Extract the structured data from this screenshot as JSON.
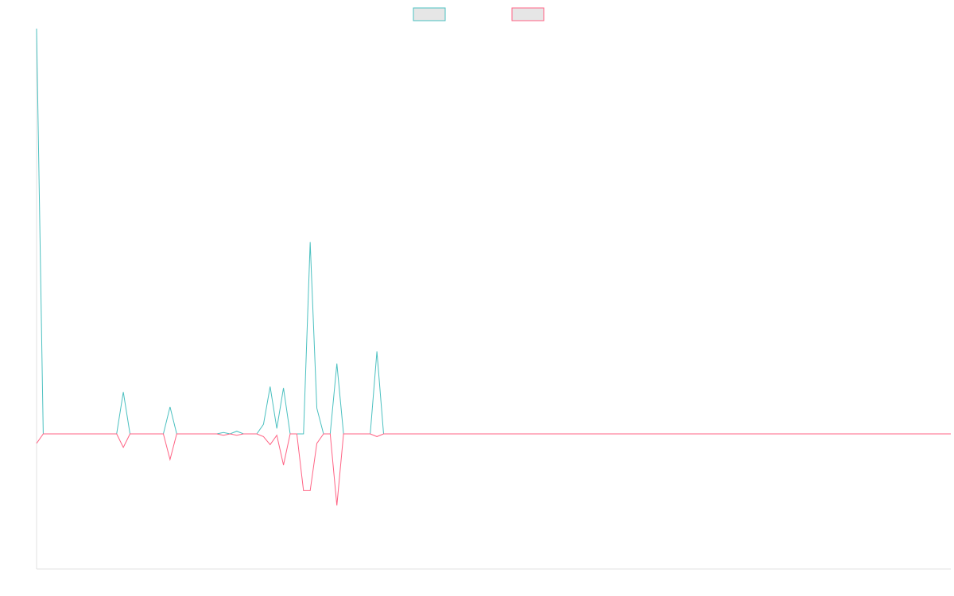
{
  "chart_data": {
    "type": "line",
    "title": "",
    "xlabel": "",
    "ylabel": "",
    "grid": false,
    "legend_placement": "top-center",
    "ylim": [
      -100,
      300
    ],
    "series": [
      {
        "color": "#4bc0c0",
        "fill": "#e6e6e6",
        "values": [
          300,
          0,
          0,
          0,
          0,
          0,
          0,
          0,
          0,
          0,
          0,
          0,
          0,
          31,
          0,
          0,
          0,
          0,
          0,
          0,
          20,
          0,
          0,
          0,
          0,
          0,
          0,
          0,
          1,
          0,
          2,
          0,
          0,
          0,
          7,
          35,
          4,
          34,
          0,
          0,
          0,
          142,
          19,
          0,
          0,
          52,
          0,
          0,
          0,
          0,
          0,
          61,
          0,
          0,
          0,
          0,
          0,
          0,
          0,
          0,
          0,
          0,
          0,
          0,
          0,
          0,
          0,
          0,
          0,
          0,
          0,
          0,
          0,
          0,
          0,
          0,
          0,
          0,
          0,
          0,
          0,
          0,
          0,
          0,
          0,
          0,
          0,
          0,
          0,
          0,
          0,
          0,
          0,
          0,
          0,
          0,
          0,
          0,
          0,
          0,
          0,
          0,
          0,
          0,
          0,
          0,
          0,
          0,
          0,
          0,
          0,
          0,
          0,
          0,
          0,
          0,
          0,
          0,
          0,
          0,
          0,
          0,
          0,
          0,
          0,
          0,
          0,
          0,
          0,
          0,
          0,
          0,
          0,
          0,
          0,
          0,
          0,
          0
        ]
      },
      {
        "color": "#ff6384",
        "fill": "#e6e6e6",
        "values": [
          -7,
          0,
          0,
          0,
          0,
          0,
          0,
          0,
          0,
          0,
          0,
          0,
          0,
          -10,
          0,
          0,
          0,
          0,
          0,
          0,
          -19,
          0,
          0,
          0,
          0,
          0,
          0,
          0,
          -1,
          0,
          -1,
          0,
          0,
          0,
          -2,
          -8,
          -1,
          -23,
          0,
          0,
          -42,
          -42,
          -7,
          0,
          0,
          -53,
          0,
          0,
          0,
          0,
          0,
          -2,
          0,
          0,
          0,
          0,
          0,
          0,
          0,
          0,
          0,
          0,
          0,
          0,
          0,
          0,
          0,
          0,
          0,
          0,
          0,
          0,
          0,
          0,
          0,
          0,
          0,
          0,
          0,
          0,
          0,
          0,
          0,
          0,
          0,
          0,
          0,
          0,
          0,
          0,
          0,
          0,
          0,
          0,
          0,
          0,
          0,
          0,
          0,
          0,
          0,
          0,
          0,
          0,
          0,
          0,
          0,
          0,
          0,
          0,
          0,
          0,
          0,
          0,
          0,
          0,
          0,
          0,
          0,
          0,
          0,
          0,
          0,
          0,
          0,
          0,
          0,
          0,
          0,
          0,
          0,
          0,
          0,
          0,
          0,
          0,
          0,
          0
        ]
      }
    ]
  }
}
